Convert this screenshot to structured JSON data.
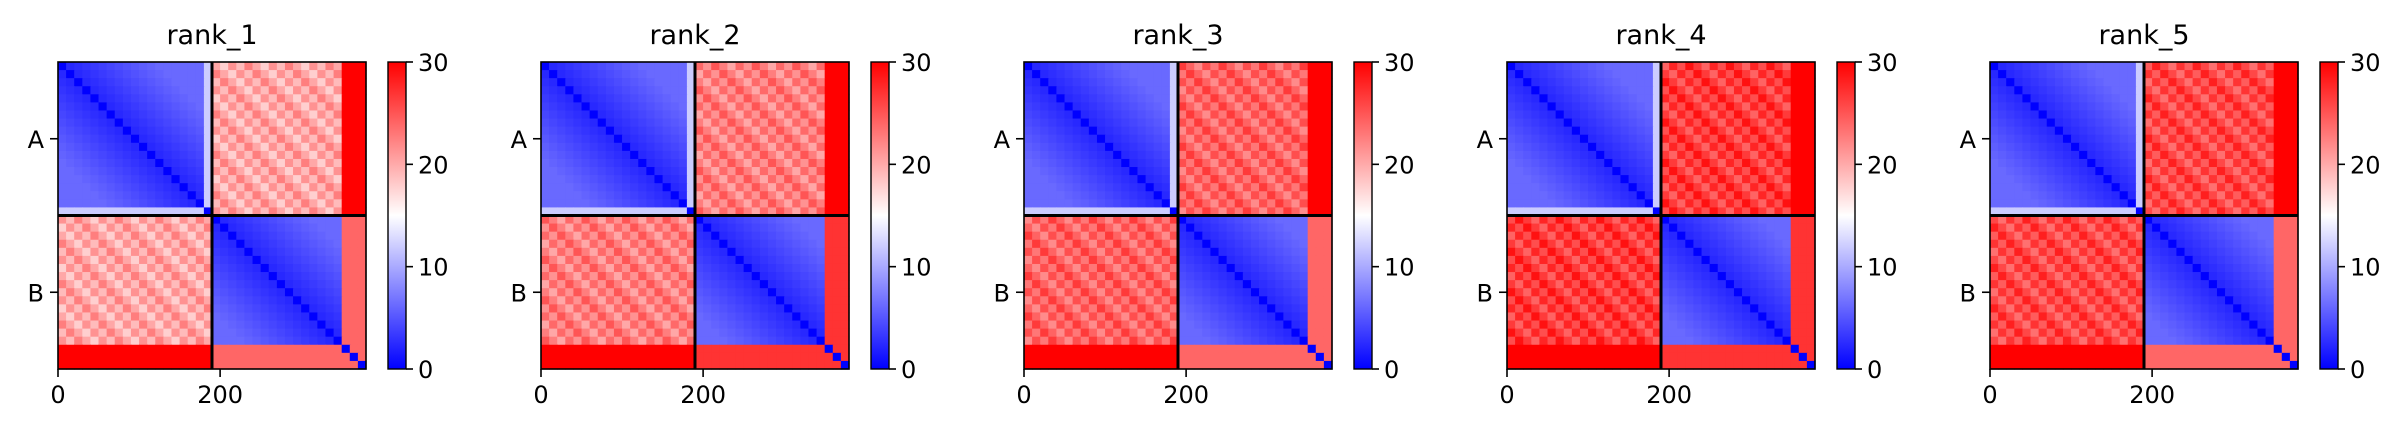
{
  "chart_data": {
    "type": "heatmap",
    "colormap": [
      "#0000ff",
      "#ffffff",
      "#ff0000"
    ],
    "colorbar": {
      "min": 0,
      "max": 30,
      "ticks": [
        0,
        10,
        20,
        30
      ]
    },
    "x_ticks": [
      0,
      200
    ],
    "x_range": [
      0,
      380
    ],
    "chain_boundary": 190,
    "chain_labels": [
      "A",
      "B"
    ],
    "panels": [
      {
        "title": "rank_1"
      },
      {
        "title": "rank_2"
      },
      {
        "title": "rank_3"
      },
      {
        "title": "rank_4"
      },
      {
        "title": "rank_5"
      }
    ]
  }
}
